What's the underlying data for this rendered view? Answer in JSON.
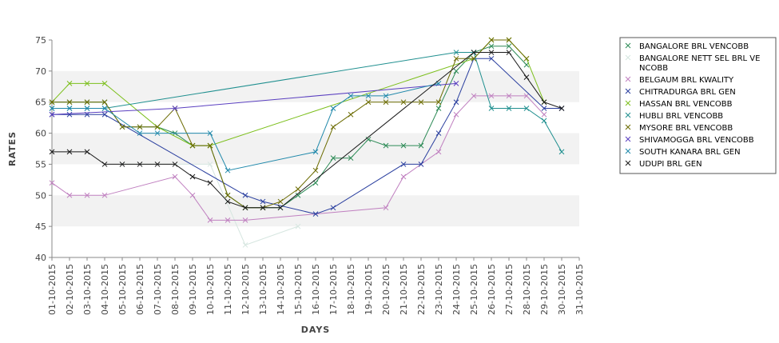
{
  "chart_data": {
    "type": "line",
    "xlabel": "DAYS",
    "ylabel": "RATES",
    "ylim": [
      40,
      75
    ],
    "yticks": [
      40,
      45,
      50,
      55,
      60,
      65,
      70,
      75
    ],
    "grid": "alternating horizontal bands",
    "legend_position": "right",
    "categories": [
      "01-10-2015",
      "02-10-2015",
      "03-10-2015",
      "04-10-2015",
      "05-10-2015",
      "06-10-2015",
      "07-10-2015",
      "08-10-2015",
      "09-10-2015",
      "10-10-2015",
      "11-10-2015",
      "12-10-2015",
      "13-10-2015",
      "14-10-2015",
      "15-10-2015",
      "16-10-2015",
      "17-10-2015",
      "18-10-2015",
      "19-10-2015",
      "20-10-2015",
      "21-10-2015",
      "22-10-2015",
      "23-10-2015",
      "24-10-2015",
      "25-10-2015",
      "26-10-2015",
      "27-10-2015",
      "28-10-2015",
      "29-10-2015",
      "30-10-2015",
      "31-10-2015"
    ],
    "series": [
      {
        "name": "BANGALORE BRL VENCOBB",
        "legend_lines": [
          "BANGALORE BRL VENCOBB"
        ],
        "color": "#2e8b57",
        "values": [
          65,
          65,
          65,
          65,
          61,
          61,
          61,
          60,
          58,
          58,
          50,
          48,
          48,
          48,
          50,
          52,
          56,
          56,
          59,
          58,
          58,
          58,
          64,
          70,
          73,
          74,
          74,
          71,
          null,
          null,
          null
        ]
      },
      {
        "name": "BANGALORE NETT SEL BRL VENCOBB",
        "legend_lines": [
          "BANGALORE NETT SEL BRL VE",
          "NCOBB"
        ],
        "color": "#d6e6e0",
        "values": [
          null,
          null,
          null,
          null,
          55,
          null,
          null,
          null,
          null,
          55,
          null,
          42,
          null,
          null,
          45,
          null,
          null,
          null,
          null,
          null,
          null,
          null,
          null,
          null,
          null,
          null,
          null,
          null,
          null,
          null,
          null
        ]
      },
      {
        "name": "BELGAUM BRL KWALITY",
        "legend_lines": [
          "BELGAUM BRL KWALITY"
        ],
        "color": "#c080c0",
        "values": [
          52,
          50,
          50,
          50,
          null,
          null,
          null,
          53,
          50,
          46,
          46,
          46,
          null,
          null,
          null,
          null,
          null,
          null,
          null,
          48,
          53,
          55,
          57,
          63,
          66,
          66,
          66,
          66,
          63,
          null,
          null
        ]
      },
      {
        "name": "CHITRADURGA BRL GEN",
        "legend_lines": [
          "CHITRADURGA BRL GEN"
        ],
        "color": "#2a3f9f",
        "values": [
          63,
          63,
          63,
          63,
          null,
          null,
          null,
          null,
          null,
          null,
          null,
          50,
          49,
          null,
          null,
          47,
          48,
          null,
          null,
          null,
          55,
          55,
          60,
          65,
          72,
          72,
          null,
          null,
          64,
          64,
          null
        ]
      },
      {
        "name": "HASSAN BRL VENCOBB",
        "legend_lines": [
          "HASSAN BRL VENCOBB"
        ],
        "color": "#7cbf1c",
        "values": [
          65,
          68,
          68,
          68,
          null,
          null,
          61,
          null,
          58,
          58,
          null,
          null,
          null,
          null,
          null,
          null,
          null,
          null,
          null,
          null,
          null,
          null,
          null,
          null,
          72,
          75,
          75,
          72,
          65,
          null,
          null
        ]
      },
      {
        "name": "HUBLI BRL VENCOBB",
        "legend_lines": [
          "HUBLI BRL VENCOBB"
        ],
        "color": "#1f8f8f",
        "values": [
          64,
          64,
          64,
          64,
          null,
          null,
          null,
          null,
          null,
          null,
          null,
          null,
          null,
          null,
          null,
          null,
          null,
          null,
          null,
          null,
          null,
          null,
          null,
          73,
          73,
          64,
          64,
          64,
          62,
          57,
          null
        ]
      },
      {
        "name": "MYSORE BRL VENCOBB",
        "legend_lines": [
          "MYSORE BRL VENCOBB"
        ],
        "color": "#6b6b00",
        "values": [
          65,
          65,
          65,
          65,
          61,
          61,
          61,
          64,
          58,
          58,
          50,
          48,
          48,
          49,
          51,
          54,
          61,
          63,
          65,
          65,
          65,
          65,
          65,
          72,
          72,
          75,
          75,
          72,
          null,
          null,
          null
        ]
      },
      {
        "name": "SHIVAMOGGA BRL VENCOBB",
        "legend_lines": [
          "SHIVAMOGGA BRL VENCOBB"
        ],
        "color": "#5a3fc0",
        "values": [
          63,
          null,
          null,
          null,
          null,
          null,
          null,
          64,
          null,
          null,
          null,
          null,
          null,
          null,
          null,
          null,
          null,
          null,
          null,
          null,
          null,
          null,
          null,
          68,
          null,
          null,
          null,
          null,
          null,
          null,
          null
        ]
      },
      {
        "name": "SOUTH KANARA BRL GEN",
        "legend_lines": [
          "SOUTH KANARA BRL GEN"
        ],
        "color": "#1f88aa",
        "values": [
          64,
          64,
          64,
          64,
          null,
          60,
          60,
          null,
          null,
          60,
          54,
          null,
          null,
          null,
          null,
          57,
          64,
          66,
          66,
          66,
          null,
          null,
          68,
          null,
          null,
          null,
          null,
          null,
          null,
          null,
          null
        ]
      },
      {
        "name": "UDUPI BRL GEN",
        "legend_lines": [
          "UDUPI BRL GEN"
        ],
        "color": "#1a1a1a",
        "values": [
          57,
          57,
          57,
          55,
          55,
          55,
          55,
          55,
          53,
          52,
          49,
          48,
          48,
          48,
          null,
          null,
          null,
          null,
          null,
          null,
          null,
          null,
          null,
          null,
          73,
          73,
          73,
          69,
          65,
          64,
          null
        ]
      }
    ]
  }
}
